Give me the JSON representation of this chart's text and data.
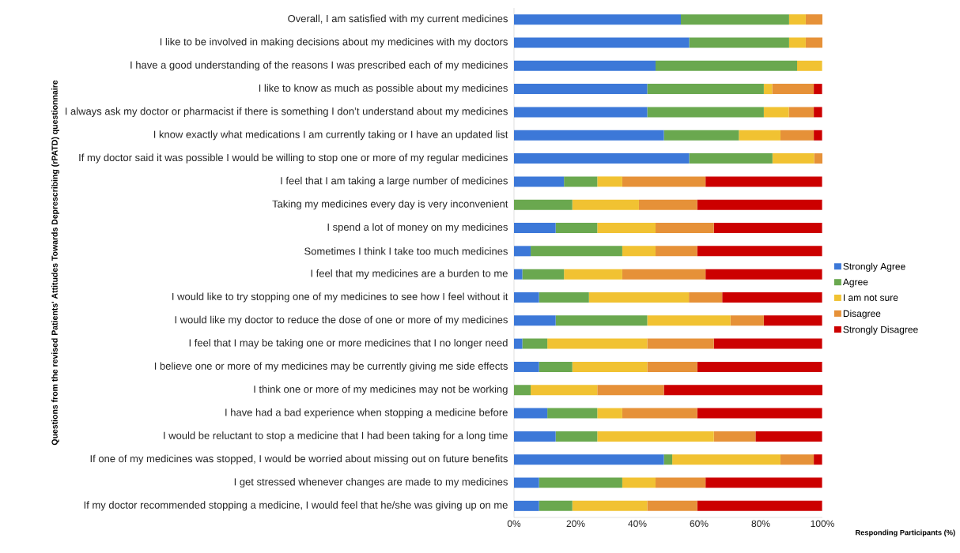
{
  "chart_data": {
    "type": "bar",
    "orientation": "horizontal",
    "stacked": true,
    "ylabel": "Questions from the revised Patients' Attitudes Towards Deprescribing (rPATD) questionnaire",
    "xlabel": "Responding Participants (%)",
    "categories": [
      "Overall, I am satisfied with my current medicines",
      "I like to be involved in making decisions about my medicines with my doctors",
      "I have a good understanding of the reasons I was prescribed each of my medicines",
      "I like to know as much as possible about my medicines",
      "I always ask my doctor or pharmacist if there is something I don’t understand about my medicines",
      "I know exactly what medications I am currently taking or I have an updated list",
      "If my doctor said it was possible I would be willing to stop one or more of my regular medicines",
      "I feel that I am taking a large number of medicines",
      "Taking my medicines every day is very inconvenient",
      "I spend a lot of money on my medicines",
      "Sometimes I think I take too much medicines",
      "I feel that my medicines are a burden to me",
      "I would like to try stopping one of my medicines to see how I feel without it",
      "I would like my doctor to reduce the dose of one or more of my medicines",
      "I feel that I may be taking one or more medicines that I no longer need",
      "I believe one or more of my medicines may be currently giving me side effects",
      "I think one or more of my medicines may not be working",
      "I have had a bad experience when stopping a medicine before",
      "I would be reluctant to stop a medicine that I had been taking for a long time",
      "If one of my medicines was stopped, I would be worried about missing out on future benefits",
      "I get stressed whenever changes are made to my medicines",
      "If my doctor recommended stopping a medicine, I would feel that he/she was giving up on me"
    ],
    "series": [
      {
        "name": "Strongly Agree",
        "color": "#3c78d8",
        "values": [
          54.1,
          56.8,
          45.9,
          43.2,
          43.2,
          48.6,
          56.8,
          16.2,
          0,
          13.5,
          5.4,
          2.7,
          8.1,
          13.5,
          2.7,
          8.1,
          0,
          10.8,
          13.5,
          48.6,
          8.1,
          8.1
        ]
      },
      {
        "name": "Agree",
        "color": "#6aa84f",
        "values": [
          35.1,
          32.4,
          45.9,
          37.8,
          37.8,
          24.3,
          27.0,
          10.8,
          18.9,
          13.5,
          29.7,
          13.5,
          16.2,
          29.7,
          8.1,
          10.8,
          5.4,
          16.2,
          13.5,
          2.7,
          27.0,
          10.8
        ]
      },
      {
        "name": "I am not sure",
        "color": "#f1c232",
        "values": [
          5.4,
          5.4,
          8.1,
          2.7,
          8.1,
          13.5,
          13.5,
          8.1,
          21.6,
          18.9,
          10.8,
          18.9,
          32.4,
          27.0,
          32.4,
          24.3,
          21.6,
          8.1,
          37.8,
          35.1,
          10.8,
          24.3
        ]
      },
      {
        "name": "Disagree",
        "color": "#e69138",
        "values": [
          5.4,
          5.4,
          0,
          13.5,
          8.1,
          10.8,
          2.7,
          27.0,
          18.9,
          18.9,
          13.5,
          27.0,
          10.8,
          10.8,
          21.6,
          16.2,
          21.6,
          24.3,
          13.5,
          10.8,
          16.2,
          16.2
        ]
      },
      {
        "name": "Strongly Disagree",
        "color": "#cc0000",
        "values": [
          0,
          0,
          0,
          2.7,
          2.7,
          2.7,
          0,
          37.8,
          40.5,
          35.1,
          40.5,
          37.8,
          32.4,
          18.9,
          35.1,
          40.5,
          51.4,
          40.5,
          21.6,
          2.7,
          37.8,
          40.5
        ]
      }
    ],
    "xlim": [
      0,
      100
    ],
    "xticks": [
      {
        "value": 0,
        "label": "0%"
      },
      {
        "value": 20,
        "label": "20%"
      },
      {
        "value": 40,
        "label": "40%"
      },
      {
        "value": 60,
        "label": "60%"
      },
      {
        "value": 80,
        "label": "80%"
      },
      {
        "value": 100,
        "label": "100%"
      }
    ],
    "grid": false,
    "legend": "right"
  }
}
